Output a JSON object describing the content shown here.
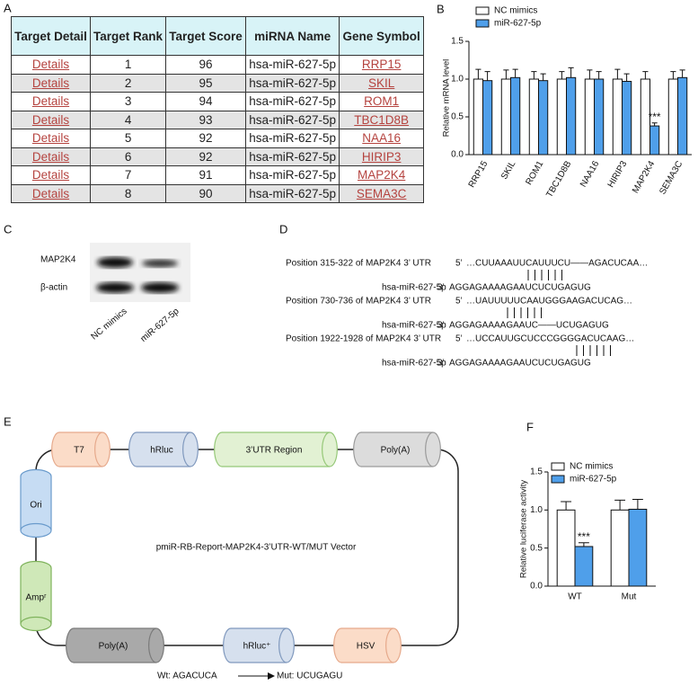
{
  "panels": [
    "A",
    "B",
    "C",
    "D",
    "E",
    "F"
  ],
  "table": {
    "header": [
      "Target Detail",
      "Target Rank",
      "Target Score",
      "miRNA Name",
      "Gene Symbol"
    ],
    "rows": [
      [
        "Details",
        1,
        96,
        "hsa-miR-627-5p",
        "RRP15"
      ],
      [
        "Details",
        2,
        95,
        "hsa-miR-627-5p",
        "SKIL"
      ],
      [
        "Details",
        3,
        94,
        "hsa-miR-627-5p",
        "ROM1"
      ],
      [
        "Details",
        4,
        93,
        "hsa-miR-627-5p",
        "TBC1D8B"
      ],
      [
        "Details",
        5,
        92,
        "hsa-miR-627-5p",
        "NAA16"
      ],
      [
        "Details",
        6,
        92,
        "hsa-miR-627-5p",
        "HIRIP3"
      ],
      [
        "Details",
        7,
        91,
        "hsa-miR-627-5p",
        "MAP2K4"
      ],
      [
        "Details",
        8,
        90,
        "hsa-miR-627-5p",
        "SEMA3C"
      ]
    ]
  },
  "chart_data": [
    {
      "type": "bar",
      "ylabel": "Relative mRNA level",
      "categories": [
        "RRP15",
        "SKIL",
        "ROM1",
        "TBC1D8B",
        "NAA16",
        "HIRIP3",
        "MAP2K4",
        "SEMA3C"
      ],
      "series": [
        {
          "name": "NC mimics",
          "color": "#ffffff",
          "values": [
            1,
            1,
            1,
            1,
            1,
            1,
            1,
            1
          ],
          "errors": [
            0.13,
            0.12,
            0.1,
            0.1,
            0.12,
            0.13,
            0.1,
            0.1
          ]
        },
        {
          "name": "miR-627-5p",
          "color": "#4f9fea",
          "values": [
            0.98,
            1.02,
            0.98,
            1.02,
            1.0,
            0.97,
            0.38,
            1.02
          ],
          "errors": [
            0.12,
            0.11,
            0.09,
            0.13,
            0.1,
            0.1,
            0.04,
            0.1
          ]
        }
      ],
      "annotations": [
        {
          "text": "***",
          "category": "MAP2K4"
        }
      ],
      "ylim": [
        0,
        1.5
      ],
      "yticks": [
        {
          "value": 0,
          "label": "0.0"
        },
        {
          "value": 0.5,
          "label": "0.5"
        },
        {
          "value": 1,
          "label": "1.0"
        },
        {
          "value": 1.5,
          "label": "1.5"
        }
      ]
    },
    {
      "type": "bar",
      "ylabel": "Relative luciferase activity",
      "categories": [
        "WT",
        "Mut"
      ],
      "series": [
        {
          "name": "NC mimics",
          "color": "#ffffff",
          "values": [
            1.0,
            1.0
          ],
          "errors": [
            0.11,
            0.13
          ]
        },
        {
          "name": "miR-627-5p",
          "color": "#4f9fea",
          "values": [
            0.52,
            1.01
          ],
          "errors": [
            0.05,
            0.13
          ]
        }
      ],
      "annotations": [
        {
          "text": "***",
          "category": "WT"
        }
      ],
      "ylim": [
        0,
        1.5
      ],
      "yticks": [
        {
          "value": 0,
          "label": "0.0"
        },
        {
          "value": 0.5,
          "label": "0.5"
        },
        {
          "value": 1,
          "label": "1.0"
        },
        {
          "value": 1.5,
          "label": "1.5"
        }
      ]
    }
  ],
  "blot": {
    "rows": [
      "MAP2K4",
      "β-actin"
    ],
    "lanes": [
      "NC mimics",
      "miR-627-5p"
    ]
  },
  "alignments": [
    {
      "position": "Position 315-322 of MAP2K4 3’ UTR",
      "prime5": "5’",
      "target": "…CUUAAAUUCAUUUCU——AGACUCAA…",
      "mirna": "hsa-miR-627-5p",
      "prime3": "3’",
      "mirna_seq": "AGGAGAAAAGAAUCUCUGAGUG"
    },
    {
      "position": "Position 730-736 of MAP2K4 3’ UTR",
      "prime5": "5’",
      "target": "…UAUUUUUCAAUGGGAAGACUCAG…",
      "mirna": "hsa-miR-627-5p",
      "prime3": "3’",
      "mirna_seq": "AGGAGAAAAGAAUC——UCUGAGUG"
    },
    {
      "position": "Position 1922-1928 of MAP2K4 3’ UTR",
      "prime5": "5’",
      "target": "…UCCAUUGCUCCCGGGGACUCAAG…",
      "mirna": "hsa-miR-627-5p",
      "prime3": "3’",
      "mirna_seq": "AGGAGAAAAGAAUCUCUGAGUG"
    }
  ],
  "vector": {
    "title": "pmiR-RB-Report-MAP2K4-3’UTR-WT/MUT Vector",
    "elements": [
      "T7",
      "hRluc",
      "3’UTR Region",
      "Poly(A)",
      "Ori",
      "Ampʳ",
      "Poly(A)",
      "hRluc⁺",
      "HSV"
    ],
    "wt": "Wt: AGACUCA",
    "mut": "Mut: UCUGAGU"
  }
}
